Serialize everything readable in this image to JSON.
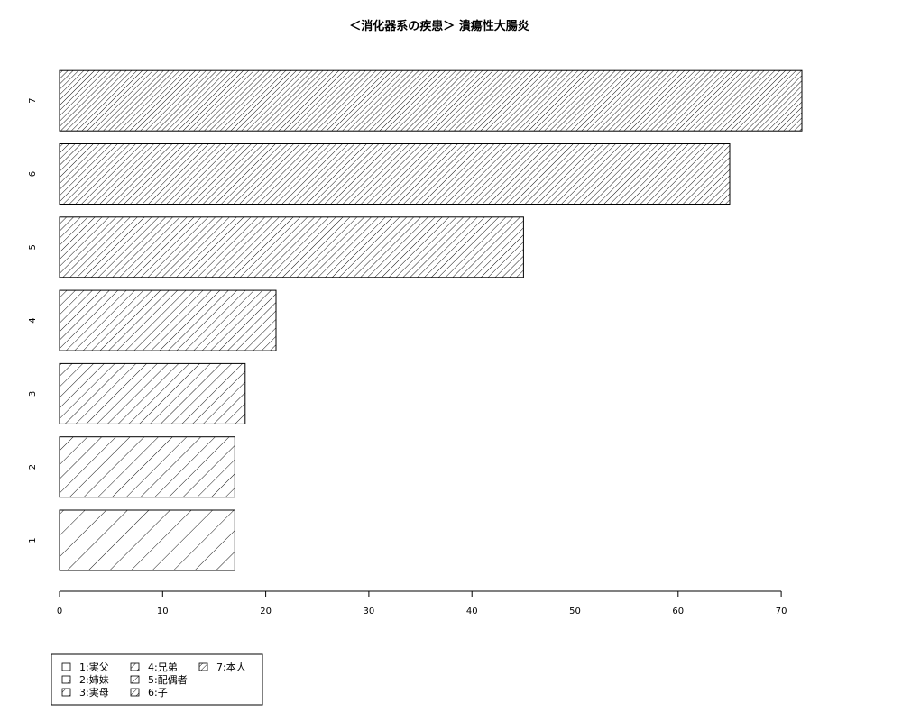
{
  "chart_data": {
    "type": "bar",
    "orientation": "horizontal",
    "title": "＜消化器系の疾患＞ 潰瘍性大腸炎",
    "xlabel": "",
    "ylabel": "",
    "categories": [
      "1",
      "2",
      "3",
      "4",
      "5",
      "6",
      "7"
    ],
    "values": [
      17,
      17,
      18,
      21,
      45,
      65,
      72
    ],
    "xlim": [
      0,
      72
    ],
    "xticks": [
      0,
      10,
      20,
      30,
      40,
      50,
      60,
      70
    ],
    "grid": false,
    "fill": "hatched",
    "hatch_density": [
      6,
      9,
      12,
      15,
      18,
      21,
      24
    ],
    "legend": {
      "placement": "bottom-left",
      "items": [
        "1:実父",
        "2:姉妹",
        "3:実母",
        "4:兄弟",
        "5:配偶者",
        "6:子",
        "7:本人"
      ]
    },
    "colors": {
      "bar_stroke": "#000000",
      "hatch_stroke": "#000000",
      "background": "#ffffff"
    }
  }
}
